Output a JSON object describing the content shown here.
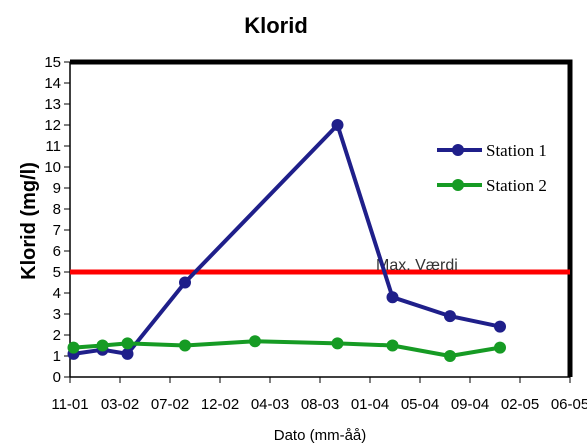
{
  "chart_data": {
    "type": "line",
    "title": "Klorid",
    "xlabel": "Dato (mm-åå)",
    "ylabel": "Klorid (mg/l)",
    "ylim": [
      0,
      15
    ],
    "yticks": [
      0,
      1,
      2,
      3,
      4,
      5,
      6,
      7,
      8,
      9,
      10,
      11,
      12,
      13,
      14,
      15
    ],
    "x_tick_labels": [
      "11-01",
      "03-02",
      "07-02",
      "12-02",
      "04-03",
      "08-03",
      "01-04",
      "05-04",
      "09-04",
      "02-05",
      "06-05"
    ],
    "series": [
      {
        "name": "Station 1",
        "color": "#1f1f8a",
        "points": [
          {
            "x": 0.07,
            "y": 1.1
          },
          {
            "x": 0.65,
            "y": 1.3
          },
          {
            "x": 1.15,
            "y": 1.1
          },
          {
            "x": 2.3,
            "y": 4.5
          },
          {
            "x": 5.35,
            "y": 12.0
          },
          {
            "x": 6.45,
            "y": 3.8
          },
          {
            "x": 7.6,
            "y": 2.9
          },
          {
            "x": 8.6,
            "y": 2.4
          }
        ]
      },
      {
        "name": "Station 2",
        "color": "#169b24",
        "points": [
          {
            "x": 0.07,
            "y": 1.4
          },
          {
            "x": 0.65,
            "y": 1.5
          },
          {
            "x": 1.15,
            "y": 1.6
          },
          {
            "x": 2.3,
            "y": 1.5
          },
          {
            "x": 3.7,
            "y": 1.7
          },
          {
            "x": 5.35,
            "y": 1.6
          },
          {
            "x": 6.45,
            "y": 1.5
          },
          {
            "x": 7.6,
            "y": 1.0
          },
          {
            "x": 8.6,
            "y": 1.4
          }
        ]
      }
    ],
    "reference_line": {
      "label": "Max. Værdi",
      "y": 5,
      "color": "#ff0000"
    },
    "legend_position": "right",
    "grid": false
  }
}
